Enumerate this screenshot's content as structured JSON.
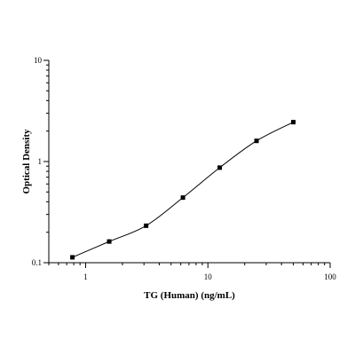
{
  "chart_data": {
    "type": "scatter",
    "xlabel": "TG (Human) (ng/mL)",
    "ylabel": "Optical Density",
    "xscale": "log",
    "yscale": "log",
    "xlim": [
      0.5,
      100
    ],
    "ylim": [
      0.1,
      10
    ],
    "x_ticks": [
      {
        "value": 1,
        "label": "1"
      },
      {
        "value": 10,
        "label": "10"
      },
      {
        "value": 100,
        "label": "100"
      }
    ],
    "y_ticks": [
      {
        "value": 0.1,
        "label": "0.1"
      },
      {
        "value": 1,
        "label": "1"
      },
      {
        "value": 10,
        "label": "10"
      }
    ],
    "grid": false,
    "legend": "none",
    "series": [
      {
        "marker": "square",
        "fit_curve": true,
        "color": "#000000",
        "points": [
          {
            "x": 0.78,
            "y": 0.113
          },
          {
            "x": 1.56,
            "y": 0.162
          },
          {
            "x": 3.125,
            "y": 0.232
          },
          {
            "x": 6.25,
            "y": 0.44
          },
          {
            "x": 12.5,
            "y": 0.87
          },
          {
            "x": 25,
            "y": 1.6
          },
          {
            "x": 50,
            "y": 2.45
          }
        ]
      }
    ]
  }
}
